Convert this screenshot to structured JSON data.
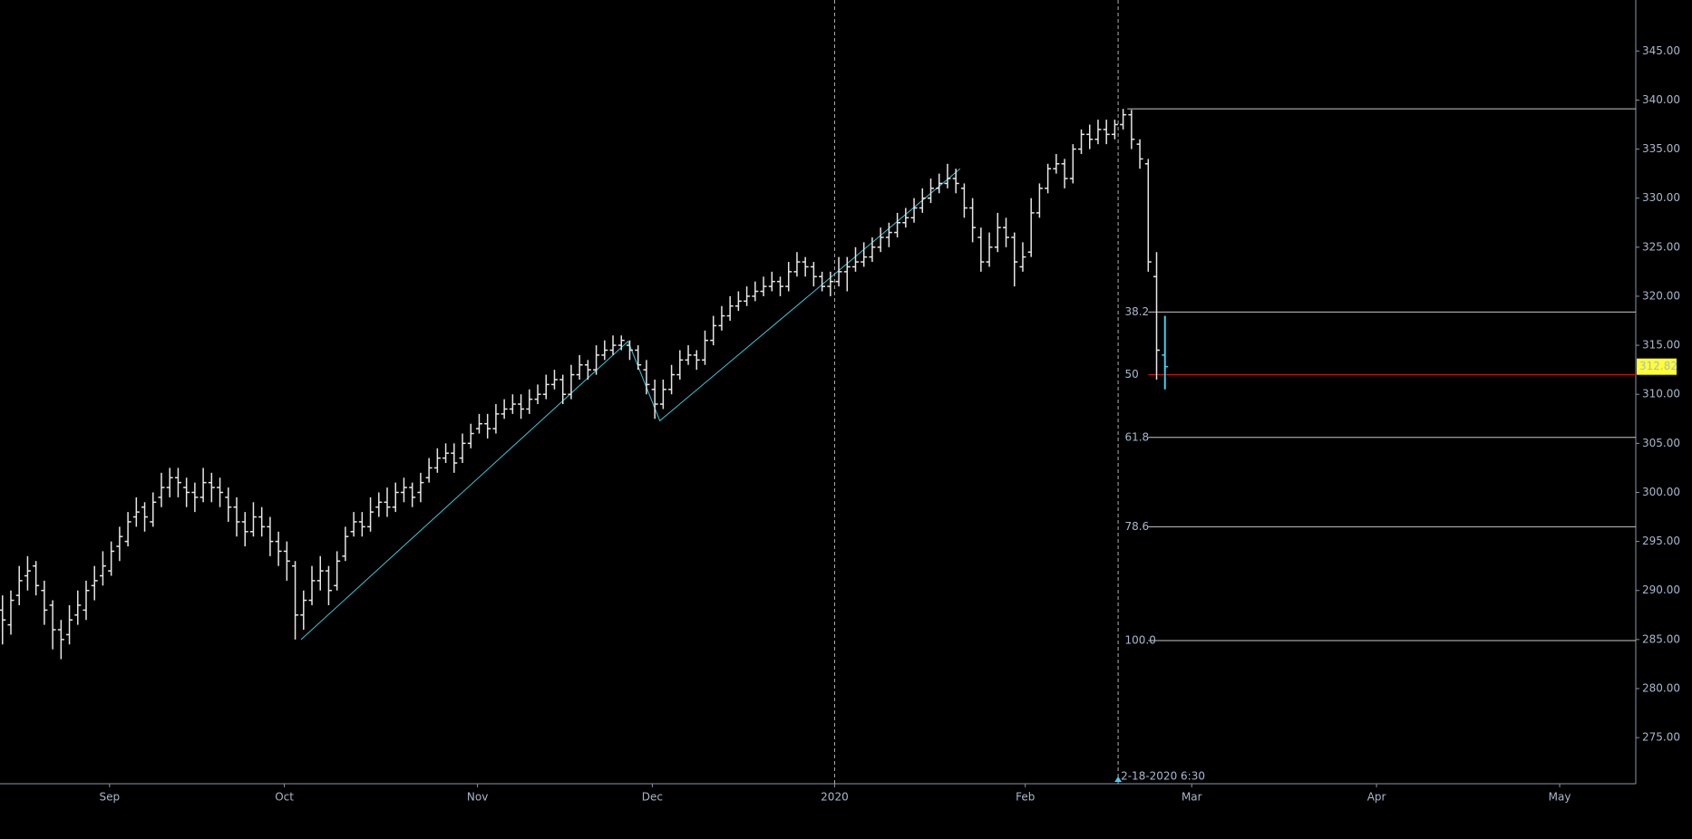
{
  "chart_data": {
    "type": "ohlc",
    "bar_color": "#e6e6e6",
    "current_bar_color": "#3fd0f0",
    "xlim": [
      -0.3,
      195.3
    ],
    "ylim": [
      270.3,
      350.2
    ],
    "xticks": [
      {
        "value": 12.8,
        "label": "Sep"
      },
      {
        "value": 33.7,
        "label": "Oct"
      },
      {
        "value": 56.8,
        "label": "Nov"
      },
      {
        "value": 77.7,
        "label": "Dec"
      },
      {
        "value": 99.5,
        "label": "2020"
      },
      {
        "value": 122.3,
        "label": "Feb"
      },
      {
        "value": 142.2,
        "label": "Mar"
      },
      {
        "value": 164.3,
        "label": "Apr"
      },
      {
        "value": 186.2,
        "label": "May"
      }
    ],
    "yticks": [
      {
        "value": 275,
        "label": "275.00"
      },
      {
        "value": 280,
        "label": "280.00"
      },
      {
        "value": 285,
        "label": "285.00"
      },
      {
        "value": 290,
        "label": "290.00"
      },
      {
        "value": 295,
        "label": "295.00"
      },
      {
        "value": 300,
        "label": "300.00"
      },
      {
        "value": 305,
        "label": "305.00"
      },
      {
        "value": 310,
        "label": "310.00"
      },
      {
        "value": 315,
        "label": "315.00"
      },
      {
        "value": 320,
        "label": "320.00"
      },
      {
        "value": 325,
        "label": "325.00"
      },
      {
        "value": 330,
        "label": "330.00"
      },
      {
        "value": 335,
        "label": "335.00"
      },
      {
        "value": 340,
        "label": "340.00"
      },
      {
        "value": 345,
        "label": "345.00"
      }
    ],
    "ohlc": [
      [
        288,
        289.5,
        284.5,
        287
      ],
      [
        286.5,
        290,
        285.5,
        289
      ],
      [
        289.5,
        292.5,
        288.5,
        291
      ],
      [
        291.5,
        293.5,
        290,
        292
      ],
      [
        292.5,
        293,
        289.5,
        290.5
      ],
      [
        290,
        291,
        286.5,
        288
      ],
      [
        288.5,
        289,
        284,
        286
      ],
      [
        286,
        287,
        283,
        285
      ],
      [
        285.5,
        288.5,
        284.5,
        287
      ],
      [
        287.5,
        290,
        286.5,
        288.5
      ],
      [
        288,
        291,
        287,
        290
      ],
      [
        290.5,
        292.5,
        289,
        291
      ],
      [
        291.5,
        294,
        290.5,
        292.5
      ],
      [
        292,
        295,
        291.5,
        294
      ],
      [
        294.5,
        296.5,
        293,
        295.5
      ],
      [
        295,
        298,
        294.5,
        297
      ],
      [
        297.5,
        299.5,
        296.5,
        298
      ],
      [
        298.5,
        299,
        296,
        297.5
      ],
      [
        297,
        300,
        296.5,
        299
      ],
      [
        299.5,
        302,
        298.5,
        300.5
      ],
      [
        300.5,
        302.5,
        299.5,
        301.5
      ],
      [
        301.5,
        302.5,
        299.5,
        301
      ],
      [
        300.5,
        301.5,
        298.5,
        300
      ],
      [
        300,
        301,
        298,
        299.5
      ],
      [
        299.5,
        302.5,
        299,
        301
      ],
      [
        301,
        302,
        299,
        300.5
      ],
      [
        300.5,
        301.5,
        298.5,
        300
      ],
      [
        299.5,
        300.5,
        297,
        298.5
      ],
      [
        298.5,
        299.5,
        295.5,
        297
      ],
      [
        297,
        298,
        294.5,
        296
      ],
      [
        296,
        299,
        295.5,
        297.5
      ],
      [
        297.5,
        298.5,
        295.5,
        296.5
      ],
      [
        296.5,
        297.5,
        293.5,
        295
      ],
      [
        295,
        296,
        292.5,
        294
      ],
      [
        294,
        295,
        291,
        293
      ],
      [
        292.5,
        293,
        285,
        287.5
      ],
      [
        287.5,
        290,
        286,
        289
      ],
      [
        289,
        292.5,
        288.5,
        291
      ],
      [
        291,
        293.5,
        290,
        292
      ],
      [
        292,
        292.5,
        288.5,
        290
      ],
      [
        290.5,
        294,
        290,
        293
      ],
      [
        293.5,
        296.5,
        293,
        295.5
      ],
      [
        296,
        298,
        295.5,
        297
      ],
      [
        297,
        298,
        295.5,
        296.5
      ],
      [
        296.5,
        299.5,
        296,
        298
      ],
      [
        298.5,
        300,
        297.5,
        299
      ],
      [
        299,
        300.5,
        297.5,
        298.5
      ],
      [
        298.5,
        301,
        298,
        300
      ],
      [
        300,
        301.5,
        299,
        300.5
      ],
      [
        300.5,
        301,
        298.5,
        299.5
      ],
      [
        300,
        302,
        299,
        301
      ],
      [
        301.5,
        303.5,
        301,
        302.5
      ],
      [
        302.5,
        304.5,
        302,
        303.5
      ],
      [
        303.5,
        305,
        303,
        304
      ],
      [
        304,
        305,
        302,
        303
      ],
      [
        303.5,
        306,
        303,
        305
      ],
      [
        305,
        307,
        304.5,
        306
      ],
      [
        306.5,
        308,
        306,
        307
      ],
      [
        307,
        308,
        305.5,
        306.5
      ],
      [
        306.5,
        309,
        306,
        308
      ],
      [
        308,
        309.5,
        307.5,
        308.5
      ],
      [
        308.5,
        310,
        308,
        309
      ],
      [
        309,
        310,
        307.5,
        308.5
      ],
      [
        308.5,
        310.5,
        308,
        309.5
      ],
      [
        309.5,
        311,
        309,
        310
      ],
      [
        310,
        312,
        309.5,
        311
      ],
      [
        311,
        312.5,
        310.5,
        311.5
      ],
      [
        311.5,
        312,
        309,
        310
      ],
      [
        310,
        313,
        309.5,
        312
      ],
      [
        312,
        314,
        311.5,
        313
      ],
      [
        313,
        313.5,
        311.5,
        312.5
      ],
      [
        312.5,
        315,
        312,
        314
      ],
      [
        314,
        315.5,
        313.5,
        314.5
      ],
      [
        314.5,
        316,
        314,
        315
      ],
      [
        315,
        316,
        314.5,
        315.5
      ],
      [
        315,
        315.5,
        313.5,
        314.5
      ],
      [
        314.5,
        315,
        312.5,
        313
      ],
      [
        312.5,
        313.5,
        310,
        311
      ],
      [
        310.5,
        311.5,
        307.5,
        309
      ],
      [
        309,
        311.5,
        308.5,
        310.5
      ],
      [
        310.5,
        313,
        310,
        312
      ],
      [
        312,
        314.5,
        311.5,
        313.5
      ],
      [
        313.5,
        315,
        313,
        314
      ],
      [
        314,
        314.5,
        312.5,
        313.5
      ],
      [
        313.5,
        316.5,
        313,
        315.5
      ],
      [
        315.5,
        318,
        315,
        317
      ],
      [
        317,
        319,
        316.5,
        318
      ],
      [
        318,
        320,
        317.5,
        319
      ],
      [
        319,
        320.5,
        318.5,
        319.5
      ],
      [
        319.5,
        321,
        319,
        320
      ],
      [
        320,
        321.5,
        319.5,
        320.5
      ],
      [
        320.5,
        322,
        320,
        321
      ],
      [
        321,
        322.5,
        320.5,
        321.5
      ],
      [
        321.5,
        322,
        320,
        321
      ],
      [
        321,
        323.5,
        320.5,
        322.5
      ],
      [
        322.5,
        324.5,
        322,
        323.5
      ],
      [
        323.5,
        324,
        322,
        323
      ],
      [
        323,
        323.5,
        321,
        322
      ],
      [
        322,
        322.5,
        320.5,
        321
      ],
      [
        321,
        322.5,
        320,
        321.5
      ],
      [
        321.5,
        324,
        321,
        322.5
      ],
      [
        322.5,
        324,
        320.5,
        323
      ],
      [
        323,
        325,
        322.5,
        323.5
      ],
      [
        323.5,
        325.5,
        323,
        324
      ],
      [
        324,
        326,
        323.5,
        325
      ],
      [
        325,
        327,
        324.5,
        326
      ],
      [
        326,
        327.5,
        325,
        326.5
      ],
      [
        326.5,
        328.5,
        326,
        327.5
      ],
      [
        327.5,
        329,
        327,
        328
      ],
      [
        328,
        330,
        327.5,
        329
      ],
      [
        329,
        331,
        328.5,
        330
      ],
      [
        330,
        332,
        329.5,
        331
      ],
      [
        331,
        332.5,
        330.5,
        331.5
      ],
      [
        331.5,
        333.5,
        331,
        332
      ],
      [
        332,
        333,
        330.5,
        331.5
      ],
      [
        331,
        331.5,
        328,
        329
      ],
      [
        329,
        330,
        325.5,
        327
      ],
      [
        326,
        327,
        322.5,
        323.5
      ],
      [
        323.5,
        326.5,
        323,
        325
      ],
      [
        325,
        328.5,
        324.5,
        327
      ],
      [
        327,
        328,
        325,
        326
      ],
      [
        326,
        326.5,
        321,
        323.5
      ],
      [
        323,
        325.5,
        322.5,
        324
      ],
      [
        324.5,
        330,
        324,
        328.5
      ],
      [
        328.5,
        331.5,
        328,
        331
      ],
      [
        331,
        333.5,
        330.5,
        333
      ],
      [
        333,
        334.5,
        332.5,
        333.5
      ],
      [
        333.5,
        334,
        331,
        332
      ],
      [
        332,
        335.5,
        331.5,
        335
      ],
      [
        335,
        337,
        334.5,
        336.5
      ],
      [
        336.5,
        337.5,
        335,
        336
      ],
      [
        336,
        338,
        335.5,
        337
      ],
      [
        337,
        338,
        335.5,
        336.5
      ],
      [
        336.5,
        338,
        336,
        337.5
      ],
      [
        337.5,
        339.1,
        337,
        338.5
      ],
      [
        338.5,
        339,
        335,
        336
      ],
      [
        335.5,
        336,
        333,
        334
      ],
      [
        333.5,
        334,
        322.5,
        323.5
      ],
      [
        322,
        324.5,
        311.5,
        314.5
      ],
      [
        314,
        318,
        310.5,
        312.82
      ]
    ],
    "zigzag": {
      "color": "#3fc6d6",
      "x": [
        35.7,
        74.8,
        78.6,
        114.5
      ],
      "y": [
        285,
        315.4,
        307.3,
        333
      ]
    },
    "fib": {
      "high": 339.1,
      "low": 284.9,
      "line_color": "#c8c8c8",
      "levels": [
        38.2,
        50,
        61.8,
        78.6,
        {
          "value": 100,
          "label": "100.0"
        }
      ],
      "level_colors": [
        "#c8c8c8",
        "#d01010",
        "#c8c8c8",
        "#c8c8c8",
        "#c8c8c8"
      ]
    },
    "vlines": [
      {
        "x": 99.5
      },
      {
        "x": 133.4,
        "label": "2-18-2020 6:30"
      }
    ],
    "last_price_color": "#ffff33"
  }
}
